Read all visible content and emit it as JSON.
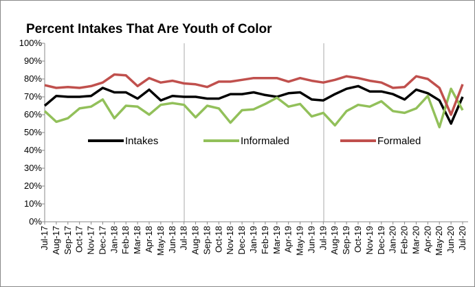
{
  "chart_data": {
    "type": "line",
    "title": "Percent Intakes That Are Youth of Color",
    "categories": [
      "Jul-17",
      "Aug-17",
      "Sep-17",
      "Oct-17",
      "Nov-17",
      "Dec-17",
      "Jan-18",
      "Feb-18",
      "Mar-18",
      "Apr-18",
      "May-18",
      "Jun-18",
      "Jul-18",
      "Aug-18",
      "Sep-18",
      "Oct-18",
      "Nov-18",
      "Dec-18",
      "Jan-19",
      "Feb-19",
      "Mar-19",
      "Apr-19",
      "May-19",
      "Jun-19",
      "Jul-19",
      "Aug-19",
      "Sep-19",
      "Oct-19",
      "Nov-19",
      "Dec-19",
      "Jan-20",
      "Feb-20",
      "Mar-20",
      "Apr-20",
      "May-20",
      "Jun-20",
      "Jul-20"
    ],
    "series": [
      {
        "name": "Intakes",
        "color": "#000000",
        "values": [
          65,
          70.5,
          70,
          70,
          70.5,
          75,
          72.5,
          72.5,
          69,
          74,
          68,
          70.5,
          70,
          70,
          69,
          69,
          71.5,
          71.5,
          72.5,
          71,
          70,
          72,
          72.5,
          68.5,
          68,
          71.5,
          74.5,
          76,
          73,
          73,
          71.5,
          68.5,
          74,
          72,
          68,
          55,
          70
        ]
      },
      {
        "name": "Informaled",
        "color": "#92c05a",
        "values": [
          62,
          56,
          58,
          63.5,
          64.5,
          68.5,
          58,
          65,
          64.5,
          60,
          65.5,
          66.5,
          65.5,
          58.5,
          65,
          63.5,
          55.5,
          62.5,
          63,
          66,
          69.5,
          64.5,
          66,
          59,
          61,
          54,
          62,
          65.5,
          64.5,
          67.5,
          62,
          61,
          63.5,
          70.5,
          53,
          74.5,
          62.5
        ]
      },
      {
        "name": "Formaled",
        "color": "#c0504d",
        "values": [
          76.5,
          75,
          75.5,
          75,
          76,
          78,
          82.5,
          82,
          76,
          80.5,
          78,
          79,
          77.5,
          77,
          75.5,
          78.5,
          78.5,
          79.5,
          80.5,
          80.5,
          80.5,
          78.5,
          80.5,
          79,
          78,
          79.5,
          81.5,
          80.5,
          79,
          78,
          75,
          75.5,
          81.5,
          80,
          75,
          60,
          77
        ]
      }
    ],
    "ylim": [
      0,
      100
    ],
    "yticks": [
      {
        "value": 0,
        "label": "0%"
      },
      {
        "value": 10,
        "label": "10%"
      },
      {
        "value": 20,
        "label": "20%"
      },
      {
        "value": 30,
        "label": "30%"
      },
      {
        "value": 40,
        "label": "40%"
      },
      {
        "value": 50,
        "label": "50%"
      },
      {
        "value": 60,
        "label": "60%"
      },
      {
        "value": 70,
        "label": "70%"
      },
      {
        "value": 80,
        "label": "80%"
      },
      {
        "value": 90,
        "label": "90%"
      },
      {
        "value": 100,
        "label": "100%"
      }
    ]
  }
}
